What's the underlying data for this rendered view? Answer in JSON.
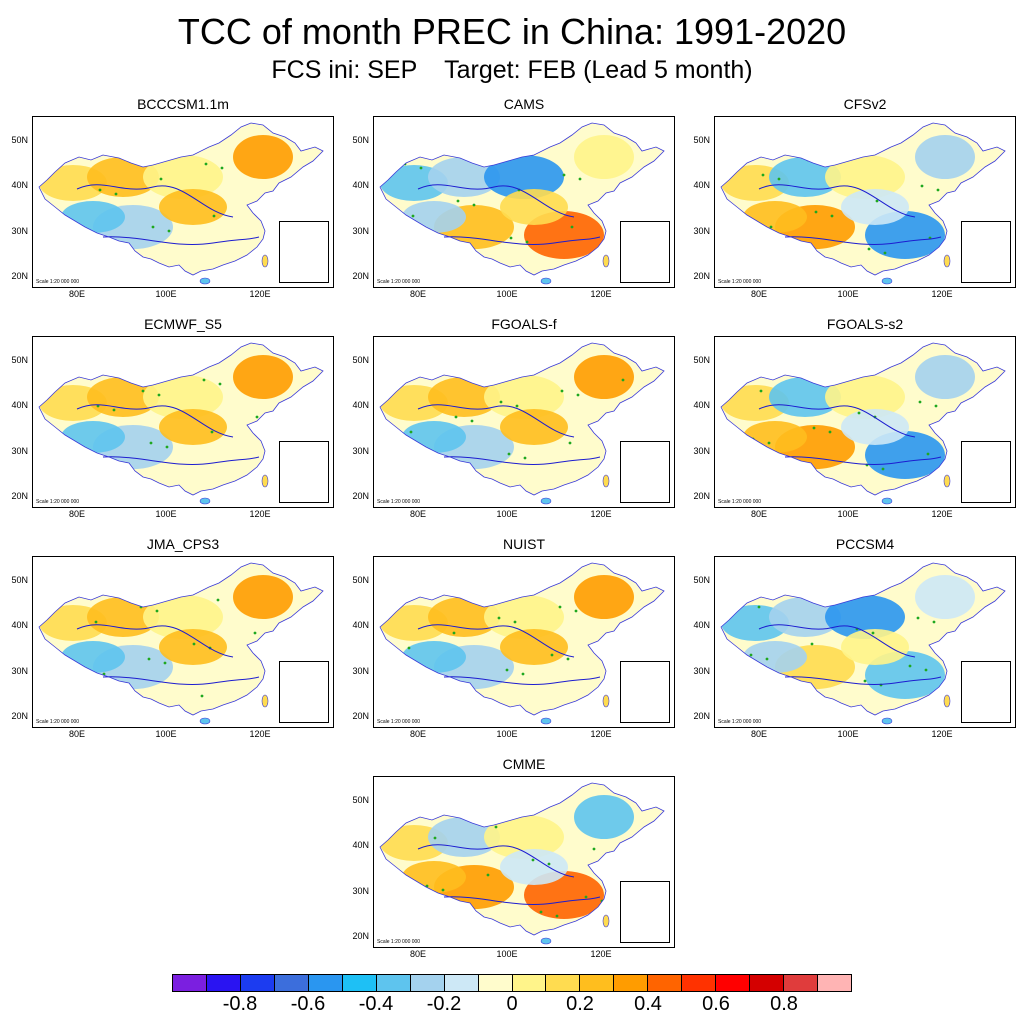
{
  "figure": {
    "title": "TCC of month PREC in China: 1991-2020",
    "subtitle": "FCS ini: SEP    Target: FEB (Lead 5 month)"
  },
  "map_labels": {
    "lat_ticks": [
      "50N",
      "40N",
      "30N",
      "20N"
    ],
    "lon_ticks": [
      "80E",
      "100E",
      "120E"
    ],
    "scale_note": "Scale 1:20 000 000"
  },
  "panels": [
    {
      "title": "BCCCSM1.1m",
      "tendency": "positive"
    },
    {
      "title": "CAMS",
      "tendency": "negative-north-positive-south"
    },
    {
      "title": "CFSv2",
      "tendency": "mixed"
    },
    {
      "title": "ECMWF_S5",
      "tendency": "positive"
    },
    {
      "title": "FGOALS-f",
      "tendency": "positive"
    },
    {
      "title": "FGOALS-s2",
      "tendency": "mixed"
    },
    {
      "title": "JMA_CPS3",
      "tendency": "positive"
    },
    {
      "title": "NUIST",
      "tendency": "positive"
    },
    {
      "title": "PCCSM4",
      "tendency": "negative"
    },
    {
      "title": "CMME",
      "tendency": "positive-south"
    }
  ],
  "colorbar": {
    "labels": [
      "-0.8",
      "-0.6",
      "-0.4",
      "-0.2",
      "0",
      "0.2",
      "0.4",
      "0.6",
      "0.8"
    ],
    "colors": [
      "#7b1fe0",
      "#2a14f2",
      "#1c3cf0",
      "#3c6edc",
      "#2a96f0",
      "#1ec0f5",
      "#5ec4ee",
      "#a4d2ee",
      "#cde8f6",
      "#fffccc",
      "#fff48a",
      "#ffdc50",
      "#ffbe1e",
      "#ff9c00",
      "#ff6400",
      "#ff3200",
      "#ff0000",
      "#d40000",
      "#e03c3c",
      "#ffb4b4"
    ]
  }
}
